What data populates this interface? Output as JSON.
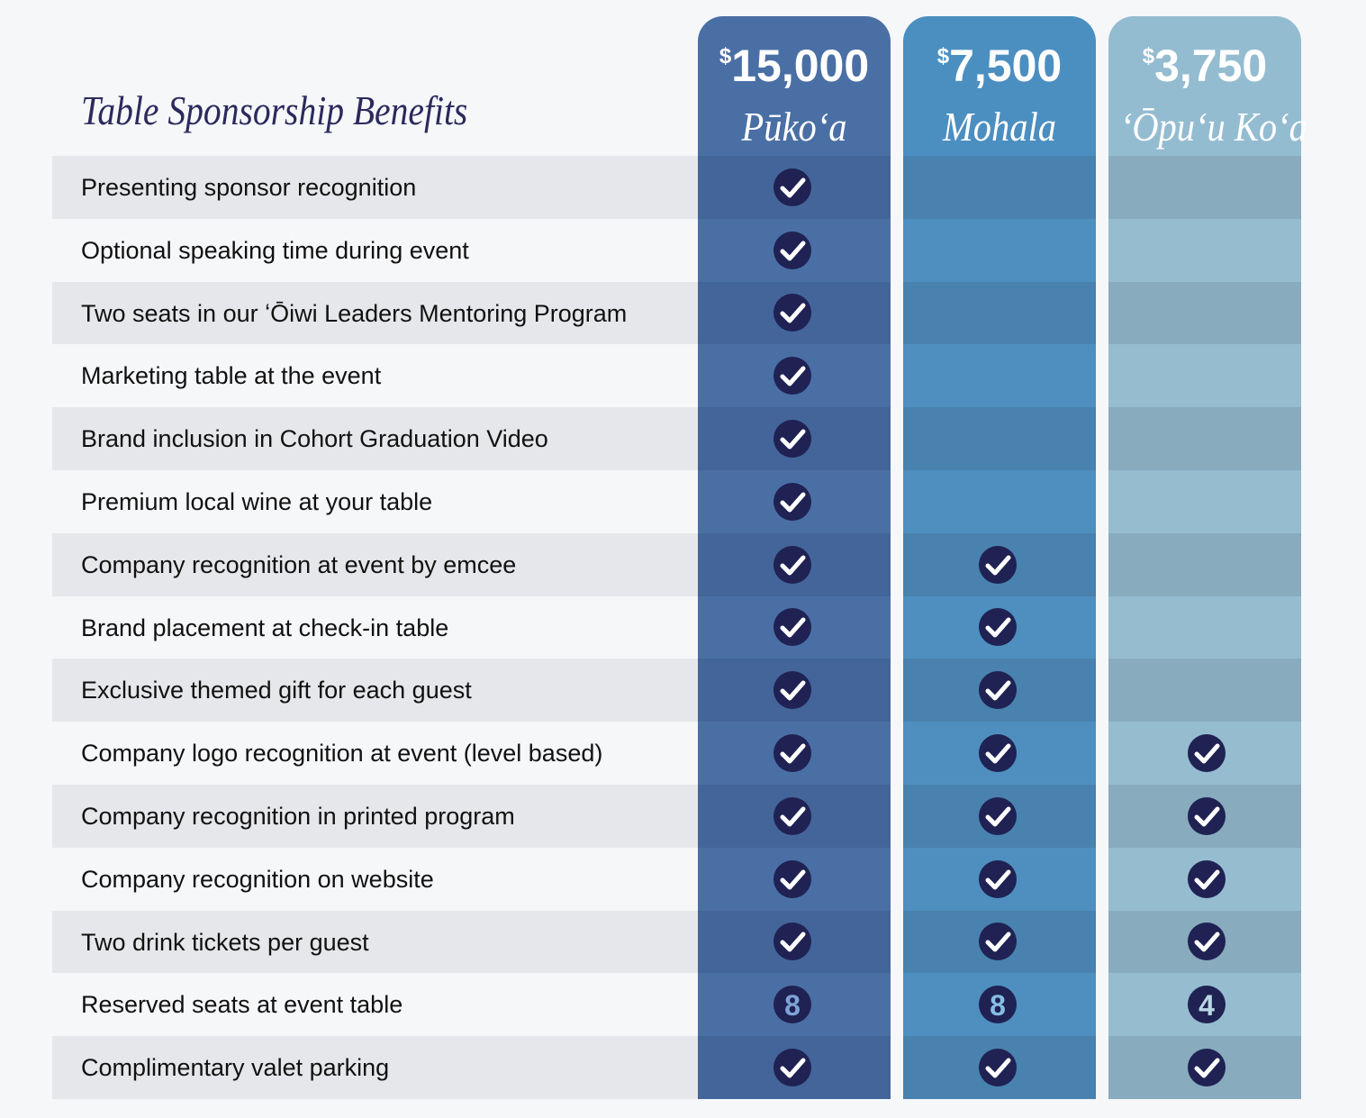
{
  "title": "Table Sponsorship Benefits",
  "tiers": [
    {
      "currency": "$",
      "amount": "15,000",
      "name": "Pūkoʻa"
    },
    {
      "currency": "$",
      "amount": "7,500",
      "name": "Mohala"
    },
    {
      "currency": "$",
      "amount": "3,750",
      "name": "ʻŌpuʻu Koʻa"
    }
  ],
  "rows": [
    {
      "benefit": "Presenting sponsor recognition",
      "cells": [
        true,
        false,
        false
      ]
    },
    {
      "benefit": "Optional speaking time during event",
      "cells": [
        true,
        false,
        false
      ]
    },
    {
      "benefit": "Two seats in our ʻŌiwi Leaders Mentoring Program",
      "cells": [
        true,
        false,
        false
      ]
    },
    {
      "benefit": "Marketing table at the event",
      "cells": [
        true,
        false,
        false
      ]
    },
    {
      "benefit": "Brand inclusion in Cohort Graduation Video",
      "cells": [
        true,
        false,
        false
      ]
    },
    {
      "benefit": "Premium local wine at your table",
      "cells": [
        true,
        false,
        false
      ]
    },
    {
      "benefit": "Company recognition at event by emcee",
      "cells": [
        true,
        true,
        false
      ]
    },
    {
      "benefit": "Brand placement at check-in table",
      "cells": [
        true,
        true,
        false
      ]
    },
    {
      "benefit": "Exclusive themed gift for each guest",
      "cells": [
        true,
        true,
        false
      ]
    },
    {
      "benefit": "Company logo recognition at event (level based)",
      "cells": [
        true,
        true,
        true
      ]
    },
    {
      "benefit": "Company recognition in printed program",
      "cells": [
        true,
        true,
        true
      ]
    },
    {
      "benefit": "Company recognition on website",
      "cells": [
        true,
        true,
        true
      ]
    },
    {
      "benefit": "Two drink tickets per guest",
      "cells": [
        true,
        true,
        true
      ]
    },
    {
      "benefit": "Reserved seats at event table",
      "cells": [
        8,
        8,
        4
      ]
    },
    {
      "benefit": "Complimentary valet parking",
      "cells": [
        true,
        true,
        true
      ]
    }
  ]
}
